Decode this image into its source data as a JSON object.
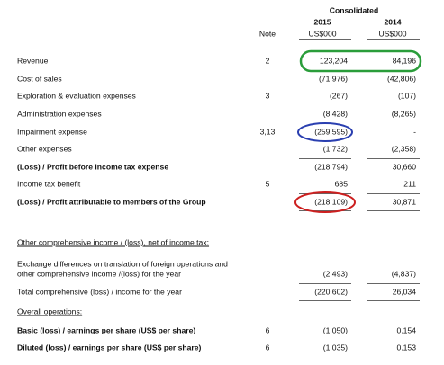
{
  "header": {
    "title": "Consolidated",
    "note": "Note",
    "columns": [
      {
        "year": "2015",
        "unit": "US$000"
      },
      {
        "year": "2014",
        "unit": "US$000"
      }
    ]
  },
  "rows": [
    {
      "label": "Revenue",
      "note": "2",
      "values": [
        "123,204",
        "84,196"
      ]
    },
    {
      "label": "Cost of sales",
      "values": [
        "(71,976)",
        "(42,806)"
      ]
    },
    {
      "label": "Exploration & evaluation expenses",
      "note": "3",
      "values": [
        "(267)",
        "(107)"
      ]
    },
    {
      "label": "Administration expenses",
      "values": [
        "(8,428)",
        "(8,265)"
      ]
    },
    {
      "label": "Impairment expense",
      "note": "3,13",
      "values": [
        "(259,595)",
        "-"
      ]
    },
    {
      "label": "Other expenses",
      "values": [
        "(1,732)",
        "(2,358)"
      ]
    },
    {
      "label": "(Loss) / Profit before income tax expense",
      "bold": true,
      "values": [
        "(218,794)",
        "30,660"
      ]
    },
    {
      "label": "Income tax benefit",
      "note": "5",
      "values": [
        "685",
        "211"
      ]
    },
    {
      "label": "(Loss) / Profit attributable to members of the Group",
      "bold": true,
      "values": [
        "(218,109)",
        "30,871"
      ]
    },
    {
      "label": "Other comprehensive income / (loss), net of income tax:",
      "underline": true
    },
    {
      "label": [
        "Exchange differences on translation of foreign operations and",
        "other comprehensive income /(loss) for the year"
      ],
      "values": [
        "(2,493)",
        "(4,837)"
      ]
    },
    {
      "label": "Total comprehensive (loss) / income for the year",
      "values": [
        "(220,602)",
        "26,034"
      ]
    },
    {
      "label": "Overall operations:",
      "underline": true
    },
    {
      "label": "Basic (loss) / earnings per share (US$ per share)",
      "bold": true,
      "note": "6",
      "values": [
        "(1.050)",
        "0.154"
      ]
    },
    {
      "label": "Diluted (loss) / earnings per share (US$ per share)",
      "bold": true,
      "note": "6",
      "values": [
        "(1.035)",
        "0.153"
      ]
    }
  ]
}
